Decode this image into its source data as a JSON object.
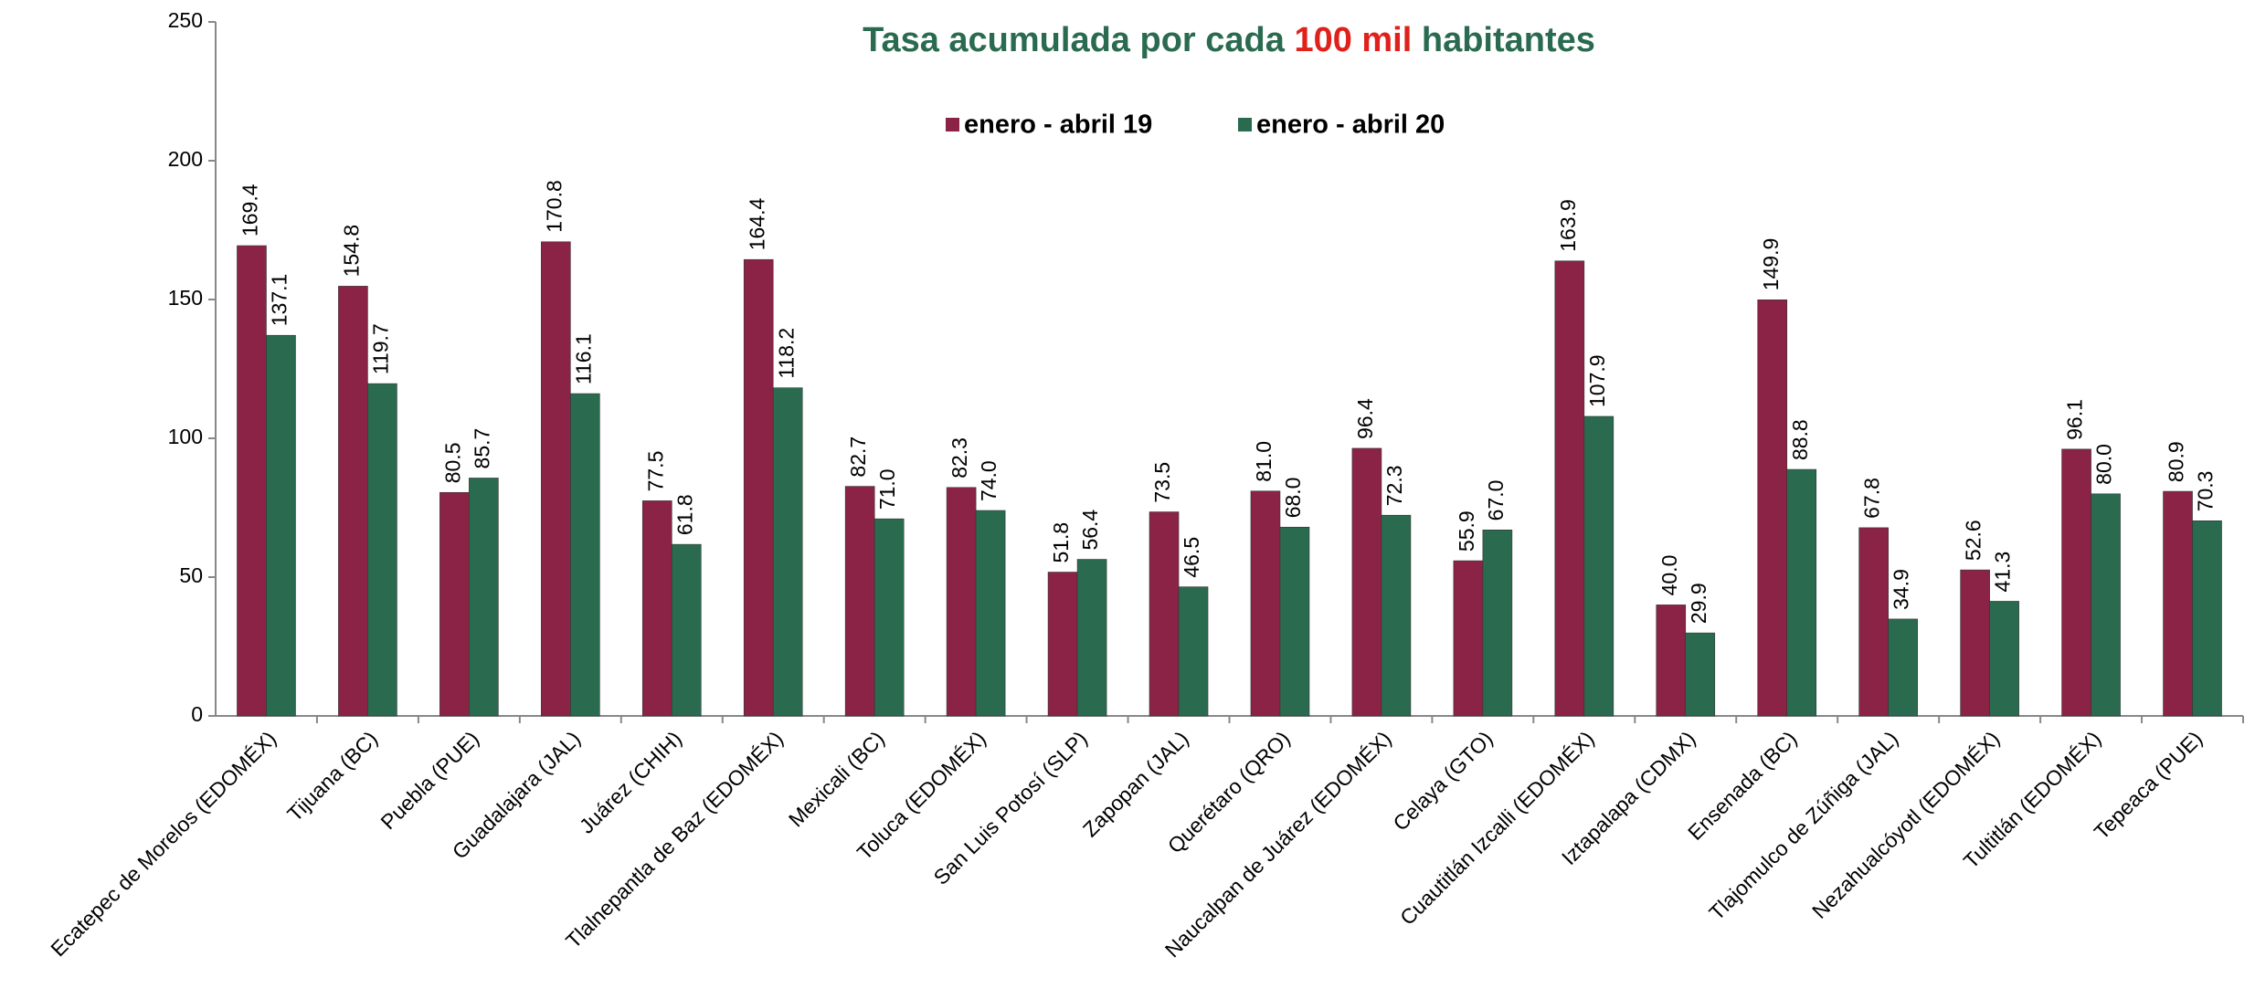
{
  "chart_data": {
    "type": "bar",
    "title": [
      {
        "text": "Tasa acumulada por cada ",
        "color": "#2a6b50"
      },
      {
        "text": "100 mil",
        "color": "#e0201b"
      },
      {
        "text": " habitantes",
        "color": "#2a6b50"
      }
    ],
    "categories": [
      "Ecatepec de Morelos (EDOMÉX)",
      "Tijuana (BC)",
      "Puebla (PUE)",
      "Guadalajara (JAL)",
      "Juárez (CHIH)",
      "Tlalnepantla de Baz (EDOMÉX)",
      "Mexicali (BC)",
      "Toluca (EDOMÉX)",
      "San Luis Potosí (SLP)",
      "Zapopan (JAL)",
      "Querétaro (QRO)",
      "Naucalpan de Juárez (EDOMÉX)",
      "Celaya (GTO)",
      "Cuautitlán Izcalli (EDOMÉX)",
      "Iztapalapa (CDMX)",
      "Ensenada (BC)",
      "Tlajomulco de Zúñiga (JAL)",
      "Nezahualcóyotl (EDOMÉX)",
      "Tultitlán (EDOMÉX)",
      "Tepeaca (PUE)"
    ],
    "series": [
      {
        "name": "enero - abril 19",
        "color": "#8b2346",
        "values": [
          169.4,
          154.8,
          80.5,
          170.8,
          77.5,
          164.4,
          82.7,
          82.3,
          51.8,
          73.5,
          81.0,
          96.4,
          55.9,
          163.9,
          40.0,
          149.9,
          67.8,
          52.6,
          96.1,
          80.9
        ],
        "value_labels": [
          "169.4",
          "154.8",
          "80.5",
          "170.8",
          "77.5",
          "164.4",
          "82.7",
          "82.3",
          "51.8",
          "73.5",
          "81.0",
          "96.4",
          "55.9",
          "163.9",
          "40.0",
          "149.9",
          "67.8",
          "52.6",
          "96.1",
          "80.9"
        ]
      },
      {
        "name": "enero - abril 20",
        "color": "#2a6b50",
        "values": [
          137.1,
          119.7,
          85.7,
          116.1,
          61.8,
          118.2,
          71.0,
          74.0,
          56.4,
          46.5,
          68.0,
          72.3,
          67.0,
          107.9,
          29.9,
          88.8,
          34.9,
          41.3,
          80.0,
          70.3
        ],
        "value_labels": [
          "137.1",
          "119.7",
          "85.7",
          "116.1",
          "61.8",
          "118.2",
          "71.0",
          "74.0",
          "56.4",
          "46.5",
          "68.0",
          "72.3",
          "67.0",
          "107.9",
          "29.9",
          "88.8",
          "34.9",
          "41.3",
          "80.0",
          "70.3"
        ]
      }
    ],
    "ylim": [
      0,
      250
    ],
    "yticks": [
      0,
      50,
      100,
      150,
      200,
      250
    ],
    "legend": "top"
  }
}
